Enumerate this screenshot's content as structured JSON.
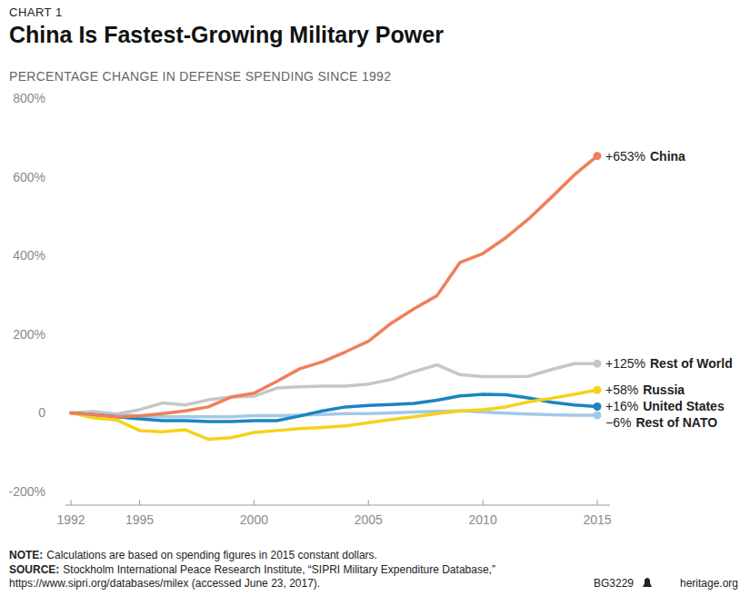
{
  "chart_data": {
    "type": "line",
    "kicker": "CHART 1",
    "title": "China Is Fastest-Growing Military Power",
    "subtitle": "PERCENTAGE CHANGE IN DEFENSE SPENDING SINCE 1992",
    "x": [
      1992,
      1993,
      1994,
      1995,
      1996,
      1997,
      1998,
      1999,
      2000,
      2001,
      2002,
      2003,
      2004,
      2005,
      2006,
      2007,
      2008,
      2009,
      2010,
      2011,
      2012,
      2013,
      2014,
      2015
    ],
    "xlim": [
      1992,
      2015
    ],
    "xticks": [
      1992,
      1995,
      2000,
      2005,
      2010,
      2015
    ],
    "ylim": [
      -200,
      800
    ],
    "yticks": [
      {
        "value": -200,
        "label": "-200%"
      },
      {
        "value": 0,
        "label": "0"
      },
      {
        "value": 200,
        "label": "200%"
      },
      {
        "value": 400,
        "label": "400%"
      },
      {
        "value": 600,
        "label": "600%"
      },
      {
        "value": 800,
        "label": "800%"
      }
    ],
    "grid": false,
    "data_labels": true,
    "series": [
      {
        "name": "Rest of World",
        "color": "#c6c6c6",
        "values": [
          0,
          3,
          -3,
          8,
          25,
          20,
          33,
          40,
          42,
          63,
          66,
          68,
          68,
          73,
          85,
          105,
          122,
          97,
          92,
          92,
          93,
          110,
          125,
          125
        ],
        "value_labels": [
          null,
          null,
          null,
          null,
          null,
          null,
          null,
          null,
          null,
          null,
          null,
          null,
          null,
          null,
          null,
          null,
          null,
          null,
          null,
          null,
          null,
          null,
          null,
          "+125%"
        ]
      },
      {
        "name": "Rest of NATO",
        "color": "#a3c9e8",
        "values": [
          0,
          -3,
          -5,
          -8,
          -10,
          -10,
          -10,
          -10,
          -7,
          -7,
          -6,
          -4,
          -2,
          -2,
          0,
          2,
          4,
          5,
          2,
          -1,
          -3,
          -5,
          -6,
          -6
        ],
        "value_labels": [
          null,
          null,
          null,
          null,
          null,
          null,
          null,
          null,
          null,
          null,
          null,
          null,
          null,
          null,
          null,
          null,
          null,
          null,
          null,
          null,
          null,
          null,
          null,
          "−6%"
        ]
      },
      {
        "name": "United States",
        "color": "#1a85c0",
        "values": [
          0,
          -5,
          -10,
          -15,
          -20,
          -20,
          -22,
          -22,
          -20,
          -20,
          -8,
          5,
          15,
          19,
          21,
          24,
          32,
          43,
          47,
          46,
          38,
          27,
          20,
          16
        ],
        "value_labels": [
          null,
          null,
          null,
          null,
          null,
          null,
          null,
          null,
          null,
          null,
          null,
          null,
          null,
          null,
          null,
          null,
          null,
          null,
          null,
          null,
          null,
          null,
          null,
          "+16%"
        ]
      },
      {
        "name": "Russia",
        "color": "#f5d21a",
        "values": [
          0,
          -13,
          -18,
          -45,
          -48,
          -43,
          -67,
          -63,
          -50,
          -45,
          -40,
          -37,
          -33,
          -25,
          -17,
          -10,
          -2,
          5,
          8,
          15,
          28,
          37,
          47,
          58
        ],
        "value_labels": [
          null,
          null,
          null,
          null,
          null,
          null,
          null,
          null,
          null,
          null,
          null,
          null,
          null,
          null,
          null,
          null,
          null,
          null,
          null,
          null,
          null,
          null,
          null,
          "+58%"
        ]
      },
      {
        "name": "China",
        "color": "#f07f5a",
        "values": [
          0,
          -5,
          -10,
          -8,
          -2,
          5,
          15,
          40,
          50,
          80,
          112,
          130,
          155,
          182,
          228,
          265,
          298,
          382,
          405,
          445,
          493,
          548,
          605,
          653
        ],
        "value_labels": [
          null,
          null,
          null,
          null,
          null,
          null,
          null,
          null,
          null,
          null,
          null,
          null,
          null,
          null,
          null,
          null,
          null,
          null,
          null,
          null,
          null,
          null,
          null,
          "+653%"
        ]
      }
    ],
    "note_label": "NOTE:",
    "note": "Calculations are based on spending figures in 2015 constant dollars.",
    "source_label": "SOURCE:",
    "source_lines": [
      "Stockholm International Peace Research Institute, “SIPRI Military Expenditure Database,”",
      "https://www.sipri.org/databases/milex (accessed June 23, 2017)."
    ],
    "footer_code": "BG3229",
    "footer_site": "heritage.org"
  }
}
